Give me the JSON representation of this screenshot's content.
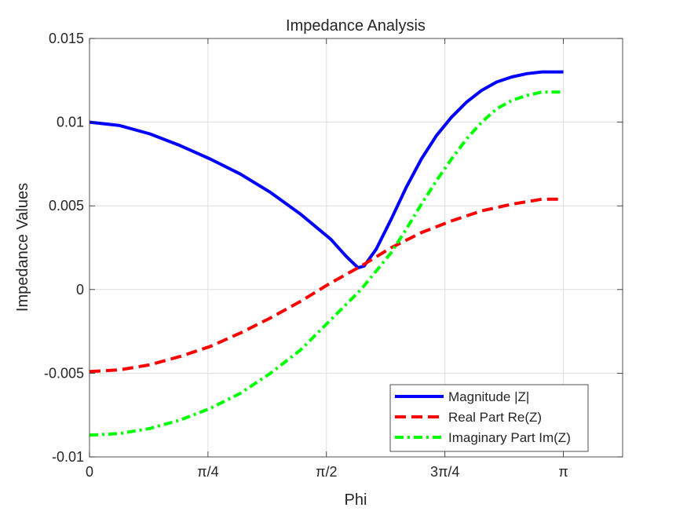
{
  "chart_data": {
    "type": "line",
    "title": "Impedance Analysis",
    "xlabel": "Phi",
    "ylabel": "Impedance Values",
    "xlim": [
      0,
      3.5343
    ],
    "ylim": [
      -0.01,
      0.015
    ],
    "grid": true,
    "legend_position": "bottom-right",
    "x_ticks": [
      0,
      0.7854,
      1.5708,
      2.3562,
      3.1416
    ],
    "x_tick_labels": [
      "0",
      "π/4",
      "π/2",
      "3π/4",
      "π"
    ],
    "y_ticks": [
      -0.01,
      -0.005,
      0,
      0.005,
      0.01,
      0.015
    ],
    "y_tick_labels": [
      "-0.01",
      "-0.005",
      "0",
      "0.005",
      "0.01",
      "0.015"
    ],
    "series": [
      {
        "name": "Magnitude |Z|",
        "color": "#0000ff",
        "style": "solid",
        "x": [
          0,
          0.2,
          0.4,
          0.6,
          0.8,
          1.0,
          1.2,
          1.4,
          1.6,
          1.7,
          1.78,
          1.82,
          1.9,
          2.0,
          2.1,
          2.2,
          2.3,
          2.4,
          2.5,
          2.6,
          2.7,
          2.8,
          2.9,
          3.0,
          3.1416
        ],
        "values": [
          0.01,
          0.0098,
          0.0093,
          0.0086,
          0.0078,
          0.0069,
          0.0058,
          0.0045,
          0.003,
          0.002,
          0.0013,
          0.0014,
          0.0024,
          0.0042,
          0.0061,
          0.0078,
          0.0092,
          0.0103,
          0.0112,
          0.0119,
          0.0124,
          0.0127,
          0.0129,
          0.013,
          0.013
        ]
      },
      {
        "name": "Real Part Re(Z)",
        "color": "#ff0000",
        "style": "dashed",
        "x": [
          0,
          0.2,
          0.4,
          0.6,
          0.8,
          1.0,
          1.2,
          1.4,
          1.6,
          1.8,
          2.0,
          2.2,
          2.4,
          2.6,
          2.8,
          3.0,
          3.1416
        ],
        "values": [
          -0.0049,
          -0.0048,
          -0.0045,
          -0.004,
          -0.0034,
          -0.0026,
          -0.0017,
          -0.0007,
          0.0004,
          0.0014,
          0.0025,
          0.0034,
          0.0041,
          0.0047,
          0.0051,
          0.0054,
          0.0054
        ]
      },
      {
        "name": "Imaginary Part Im(Z)",
        "color": "#00ff00",
        "style": "dashdot",
        "x": [
          0,
          0.2,
          0.4,
          0.6,
          0.8,
          1.0,
          1.2,
          1.4,
          1.6,
          1.8,
          2.0,
          2.1,
          2.2,
          2.3,
          2.4,
          2.5,
          2.6,
          2.7,
          2.8,
          2.9,
          3.0,
          3.1416
        ],
        "values": [
          -0.0087,
          -0.0086,
          -0.0083,
          -0.0078,
          -0.0071,
          -0.0062,
          -0.005,
          -0.0036,
          -0.0018,
          -0.0,
          0.0022,
          0.0036,
          0.0051,
          0.0065,
          0.0078,
          0.009,
          0.01,
          0.0108,
          0.0113,
          0.0116,
          0.0118,
          0.0118
        ]
      }
    ]
  }
}
